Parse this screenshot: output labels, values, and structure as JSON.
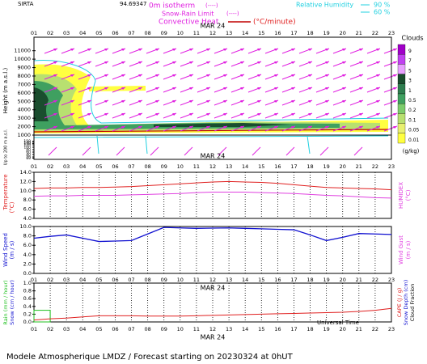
{
  "header": {
    "station": "SIRTA",
    "coord": "94.69347",
    "isotherm": "0m isotherm",
    "isotherm_key": "(----)",
    "snow_rain": "Snow-Rain Limit",
    "snow_rain_key": "(----)",
    "convective": "Convective Heat",
    "convective_unit": "(°C/minute)",
    "rh": "Relative Humidity",
    "rh_high": "90 %",
    "rh_low": "60 %"
  },
  "footer": "Modele Atmospherique LMDZ / Forecast starting on 20230324 at 0hUT",
  "chart_data": [
    {
      "type": "contour",
      "date": "MAR 24",
      "categories": [
        "01",
        "02",
        "03",
        "04",
        "05",
        "06",
        "07",
        "08",
        "09",
        "10",
        "11",
        "12",
        "13",
        "14",
        "15",
        "16",
        "17",
        "18",
        "19",
        "20",
        "21",
        "22",
        "23"
      ],
      "ylabel": "Height (m a.s.l.)",
      "ylim": [
        1000,
        12600
      ],
      "yticks": [
        1000,
        2000,
        3000,
        4000,
        5000,
        6000,
        7000,
        8000,
        9000,
        10000,
        11000
      ],
      "low_label": "Up to 200 m a.s.l.",
      "low_ylim": [
        0,
        200
      ],
      "low_yticks": [
        10,
        20,
        40,
        60,
        80,
        100,
        120,
        130,
        140,
        150
      ],
      "colorbar": {
        "title": "Clouds",
        "unit": "(g/kg)",
        "labels": [
          "9",
          "7",
          "5",
          "3",
          "1",
          "0.5",
          "0.2",
          "0.1",
          "0.05",
          "0.01"
        ],
        "colors": [
          "#a000c8",
          "#c040f0",
          "#e8a0ff",
          "#1a4d2e",
          "#2e7d4f",
          "#3fa060",
          "#7ccc6c",
          "#b8e070",
          "#e8f070",
          "#ffff40"
        ]
      }
    },
    {
      "type": "line",
      "date": "MAR 24",
      "categories": [
        "01",
        "02",
        "03",
        "04",
        "05",
        "06",
        "07",
        "08",
        "09",
        "10",
        "11",
        "12",
        "13",
        "14",
        "15",
        "16",
        "17",
        "18",
        "19",
        "20",
        "21",
        "22",
        "23"
      ],
      "ylabel": "Temperature",
      "yunit": "(°C)",
      "y2label": "HUMIDEX",
      "y2unit": "(°C)",
      "ylim": [
        4,
        14
      ],
      "yticks": [
        {
          "value": 4,
          "label": "4.0"
        },
        {
          "value": 6,
          "label": "6.0"
        },
        {
          "value": 8,
          "label": "8.0"
        },
        {
          "value": 10,
          "label": "10.0"
        },
        {
          "value": 12,
          "label": "12.0"
        },
        {
          "value": 14,
          "label": "14.0"
        }
      ],
      "series": [
        {
          "name": "Temperature",
          "color": "#e02020",
          "values": [
            10.5,
            10.6,
            10.6,
            10.7,
            10.7,
            10.8,
            10.9,
            11.1,
            11.3,
            11.5,
            11.7,
            11.9,
            12.0,
            11.9,
            11.8,
            11.6,
            11.3,
            11.0,
            10.7,
            10.6,
            10.5,
            10.4,
            10.2
          ]
        },
        {
          "name": "HUMIDEX",
          "color": "#e040e0",
          "values": [
            8.8,
            8.9,
            8.9,
            9.0,
            9.0,
            9.0,
            9.1,
            9.2,
            9.3,
            9.4,
            9.6,
            9.7,
            9.7,
            9.7,
            9.6,
            9.5,
            9.4,
            9.2,
            9.0,
            8.9,
            8.7,
            8.5,
            8.4
          ]
        }
      ]
    },
    {
      "type": "line",
      "date": "MAR 24",
      "categories": [
        "01",
        "02",
        "03",
        "04",
        "05",
        "06",
        "07",
        "08",
        "09",
        "10",
        "11",
        "12",
        "13",
        "14",
        "15",
        "16",
        "17",
        "18",
        "19",
        "20",
        "21",
        "22",
        "23"
      ],
      "ylabel": "Wind Speed",
      "yunit": "(m / s)",
      "y2label": "Wind Gust",
      "y2unit": "(m / s)",
      "ylim": [
        0,
        10
      ],
      "yticks": [
        {
          "value": 0,
          "label": "0.0"
        },
        {
          "value": 2,
          "label": "2.0"
        },
        {
          "value": 4,
          "label": "4.0"
        },
        {
          "value": 6,
          "label": "6.0"
        },
        {
          "value": 8,
          "label": "8.0"
        },
        {
          "value": 10,
          "label": "10.0"
        }
      ],
      "series": [
        {
          "name": "Wind Speed",
          "color": "#1010d0",
          "values": [
            7.5,
            7.9,
            8.2,
            7.5,
            6.8,
            6.9,
            7.0,
            8.4,
            9.8,
            9.7,
            9.6,
            9.65,
            9.7,
            9.6,
            9.5,
            9.4,
            9.3,
            8.2,
            7.0,
            7.7,
            8.5,
            8.4,
            8.3
          ]
        }
      ]
    },
    {
      "type": "line",
      "date": "MAR 24",
      "xlabel": "Universal Time",
      "categories": [
        "01",
        "02",
        "03",
        "04",
        "05",
        "06",
        "07",
        "08",
        "09",
        "10",
        "11",
        "12",
        "13",
        "14",
        "15",
        "16",
        "17",
        "18",
        "19",
        "20",
        "21",
        "22",
        "23"
      ],
      "ylabel": "Rain (mm / hour)",
      "ylabel2": "Snow (cm / hour)",
      "y2label": "CAPE (J / g)",
      "y2label2": "Snow Depth (cm)",
      "y2label3": "Cloud Fraction",
      "ylim": [
        0,
        1
      ],
      "yticks": [
        {
          "value": 0,
          "label": "0.0"
        },
        {
          "value": 0.2,
          "label": "0.2"
        },
        {
          "value": 0.4,
          "label": "0.4"
        },
        {
          "value": 0.6,
          "label": "0.6"
        },
        {
          "value": 0.8,
          "label": "0.8"
        },
        {
          "value": 1,
          "label": "1.0"
        }
      ],
      "series": [
        {
          "name": "Rain",
          "color": "#20c020",
          "values": [
            0.3,
            0,
            0,
            0,
            0,
            0,
            0,
            0,
            0,
            0,
            0,
            0,
            0,
            0,
            0,
            0,
            0,
            0,
            0,
            0,
            0,
            0,
            0
          ]
        },
        {
          "name": "CAPE",
          "color": "#e02020",
          "values": [
            0.05,
            0.08,
            0.1,
            0.13,
            0.16,
            0.16,
            0.16,
            0.15,
            0.15,
            0.15,
            0.16,
            0.17,
            0.18,
            0.19,
            0.2,
            0.21,
            0.22,
            0.23,
            0.24,
            0.25,
            0.27,
            0.3,
            0.35
          ]
        }
      ]
    }
  ]
}
